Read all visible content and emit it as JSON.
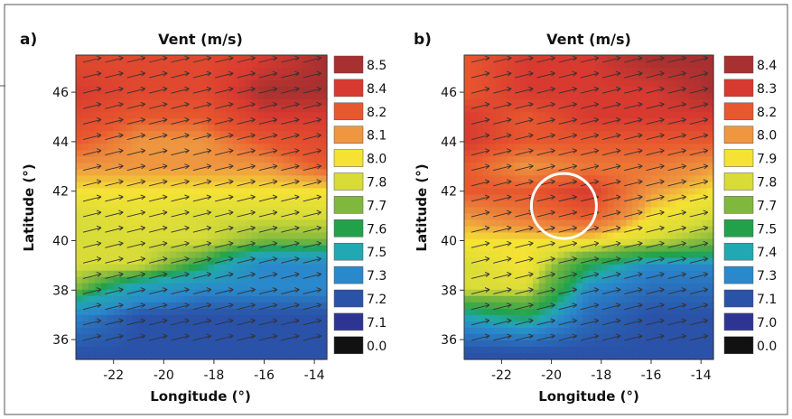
{
  "chart_data": [
    {
      "type": "heatmap",
      "panel_label": "a)",
      "title": "Vent (m/s)",
      "xlabel": "Longitude (°)",
      "ylabel": "Latitude (°)",
      "xlim": [
        -23.5,
        -13.5
      ],
      "ylim": [
        35.2,
        47.5
      ],
      "x_ticks": [
        -22,
        -20,
        -18,
        -16,
        -14
      ],
      "y_ticks": [
        36,
        38,
        40,
        42,
        44,
        46
      ],
      "colorbar": {
        "labels": [
          "8.5",
          "8.4",
          "8.2",
          "8.1",
          "8.0",
          "7.8",
          "7.7",
          "7.6",
          "7.5",
          "7.3",
          "7.2",
          "7.1",
          "0.0"
        ],
        "colors": [
          "#a83030",
          "#d83a30",
          "#e8582e",
          "#ee9640",
          "#f5e234",
          "#d9dc38",
          "#80b83e",
          "#21a24a",
          "#22a8b0",
          "#2a88cc",
          "#2a52a8",
          "#2e3492",
          "#111111"
        ]
      },
      "wind_vectors": "arrows pointing east-northeast across the whole field",
      "field": {
        "lat_grid": [
          35.5,
          37,
          38,
          39,
          40,
          41,
          42,
          43,
          44,
          45,
          46,
          47.3
        ],
        "lon_grid": [
          -23.5,
          -21,
          -18.5,
          -16,
          -13.5
        ],
        "values": [
          [
            7.2,
            7.2,
            7.2,
            7.2,
            7.2
          ],
          [
            7.3,
            7.2,
            7.2,
            7.2,
            7.2
          ],
          [
            7.7,
            7.4,
            7.3,
            7.3,
            7.3
          ],
          [
            7.8,
            7.8,
            7.6,
            7.3,
            7.3
          ],
          [
            7.8,
            7.8,
            7.8,
            7.7,
            7.7
          ],
          [
            7.8,
            7.9,
            7.8,
            7.8,
            7.8
          ],
          [
            8.0,
            8.0,
            8.0,
            8.0,
            8.0
          ],
          [
            8.1,
            8.1,
            8.1,
            8.1,
            8.2
          ],
          [
            8.2,
            8.1,
            8.1,
            8.2,
            8.3
          ],
          [
            8.3,
            8.2,
            8.2,
            8.4,
            8.4
          ],
          [
            8.4,
            8.3,
            8.3,
            8.5,
            8.5
          ],
          [
            8.3,
            8.3,
            8.3,
            8.4,
            8.5
          ]
        ]
      }
    },
    {
      "type": "heatmap",
      "panel_label": "b)",
      "title": "Vent (m/s)",
      "xlabel": "Longitude (°)",
      "ylabel": "Latitude (°)",
      "xlim": [
        -23.5,
        -13.5
      ],
      "ylim": [
        35.2,
        47.5
      ],
      "x_ticks": [
        -22,
        -20,
        -18,
        -16,
        -14
      ],
      "y_ticks": [
        36,
        38,
        40,
        42,
        44,
        46
      ],
      "colorbar": {
        "labels": [
          "8.4",
          "8.3",
          "8.2",
          "8.0",
          "7.9",
          "7.8",
          "7.7",
          "7.5",
          "7.4",
          "7.3",
          "7.1",
          "7.0",
          "0.0"
        ],
        "colors": [
          "#a83030",
          "#d83a30",
          "#e8582e",
          "#ee9640",
          "#f5e234",
          "#d9dc38",
          "#80b83e",
          "#21a24a",
          "#22a8b0",
          "#2a88cc",
          "#2a52a8",
          "#2e3492",
          "#111111"
        ]
      },
      "wind_vectors": "arrows pointing east-northeast across the whole field",
      "highlight_circle": {
        "lon": -19.5,
        "lat": 41.4
      },
      "field": {
        "lat_grid": [
          35.5,
          37,
          38,
          39,
          40,
          41,
          42,
          43,
          44,
          45,
          46,
          47.3
        ],
        "lon_grid": [
          -23.5,
          -21,
          -18.5,
          -16,
          -13.5
        ],
        "values": [
          [
            7.1,
            7.1,
            7.1,
            7.1,
            7.1
          ],
          [
            7.4,
            7.5,
            7.2,
            7.1,
            7.1
          ],
          [
            7.8,
            7.8,
            7.3,
            7.2,
            7.2
          ],
          [
            7.8,
            7.9,
            7.5,
            7.3,
            7.3
          ],
          [
            7.9,
            7.9,
            7.9,
            7.8,
            7.7
          ],
          [
            8.0,
            8.1,
            8.2,
            7.9,
            7.8
          ],
          [
            8.2,
            8.2,
            8.3,
            8.0,
            7.9
          ],
          [
            8.2,
            8.0,
            8.1,
            8.1,
            8.0
          ],
          [
            8.3,
            8.2,
            8.2,
            8.2,
            8.2
          ],
          [
            8.3,
            8.2,
            8.3,
            8.3,
            8.3
          ],
          [
            8.2,
            8.3,
            8.3,
            8.3,
            8.4
          ],
          [
            8.2,
            8.3,
            8.3,
            8.4,
            8.4
          ]
        ]
      }
    }
  ]
}
